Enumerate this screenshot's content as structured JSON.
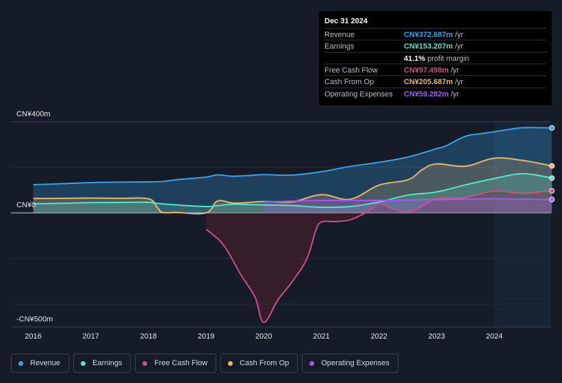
{
  "chart_data": {
    "type": "area",
    "y_top_label": "CN¥400m",
    "y_zero_label": "CN¥0",
    "y_bottom_label": "-CN¥500m",
    "ylim": [
      -500,
      400
    ],
    "xlim": [
      2015.6,
      2025.0
    ],
    "forecast_start": 2024.0,
    "x_ticks": [
      "2016",
      "2017",
      "2018",
      "2019",
      "2020",
      "2021",
      "2022",
      "2023",
      "2024"
    ],
    "series": [
      {
        "key": "revenue",
        "name": "Revenue",
        "color": "#3aa3e6",
        "points": [
          [
            2016,
            124
          ],
          [
            2016.5,
            128
          ],
          [
            2017,
            133
          ],
          [
            2017.5,
            135
          ],
          [
            2018,
            136
          ],
          [
            2018.25,
            138
          ],
          [
            2018.5,
            146
          ],
          [
            2019,
            157
          ],
          [
            2019.2,
            167
          ],
          [
            2019.45,
            161
          ],
          [
            2019.75,
            164
          ],
          [
            2020,
            168
          ],
          [
            2020.5,
            166
          ],
          [
            2021,
            181
          ],
          [
            2021.5,
            204
          ],
          [
            2022,
            222
          ],
          [
            2022.5,
            245
          ],
          [
            2023,
            282
          ],
          [
            2023.15,
            293
          ],
          [
            2023.5,
            336
          ],
          [
            2023.75,
            347
          ],
          [
            2024,
            356
          ],
          [
            2024.25,
            366
          ],
          [
            2024.5,
            374
          ],
          [
            2025,
            373
          ]
        ]
      },
      {
        "key": "earnings",
        "name": "Earnings",
        "color": "#5ce2c9",
        "points": [
          [
            2016,
            40
          ],
          [
            2016.5,
            42
          ],
          [
            2017,
            45
          ],
          [
            2017.5,
            46
          ],
          [
            2018,
            47
          ],
          [
            2018.1,
            43
          ],
          [
            2018.5,
            35
          ],
          [
            2019,
            28
          ],
          [
            2019.2,
            32
          ],
          [
            2019.45,
            38
          ],
          [
            2020,
            35
          ],
          [
            2020.5,
            32
          ],
          [
            2021,
            25
          ],
          [
            2021.5,
            28
          ],
          [
            2022,
            48
          ],
          [
            2022.5,
            78
          ],
          [
            2023,
            92
          ],
          [
            2023.5,
            123
          ],
          [
            2024,
            151
          ],
          [
            2024.5,
            172
          ],
          [
            2025,
            153
          ]
        ]
      },
      {
        "key": "free_cash_flow",
        "name": "Free Cash Flow",
        "color": "#cf4d8a",
        "points": [
          [
            2019,
            -72
          ],
          [
            2019.3,
            -140
          ],
          [
            2019.6,
            -270
          ],
          [
            2019.85,
            -370
          ],
          [
            2020,
            -480
          ],
          [
            2020.25,
            -380
          ],
          [
            2020.5,
            -300
          ],
          [
            2020.75,
            -200
          ],
          [
            2020.9,
            -80
          ],
          [
            2021,
            -40
          ],
          [
            2021.25,
            -38
          ],
          [
            2021.5,
            -30
          ],
          [
            2021.8,
            5
          ],
          [
            2022,
            40
          ],
          [
            2022.25,
            18
          ],
          [
            2022.5,
            5
          ],
          [
            2022.75,
            30
          ],
          [
            2023,
            62
          ],
          [
            2023.5,
            68
          ],
          [
            2024,
            96
          ],
          [
            2024.5,
            86
          ],
          [
            2025,
            97
          ]
        ]
      },
      {
        "key": "cash_from_op",
        "name": "Cash From Op",
        "color": "#e8b86a",
        "points": [
          [
            2016,
            63
          ],
          [
            2016.5,
            64
          ],
          [
            2017,
            65
          ],
          [
            2017.5,
            64
          ],
          [
            2018,
            62
          ],
          [
            2018.15,
            25
          ],
          [
            2018.25,
            2
          ],
          [
            2018.5,
            2
          ],
          [
            2019,
            0
          ],
          [
            2019.2,
            52
          ],
          [
            2019.5,
            43
          ],
          [
            2020,
            50
          ],
          [
            2020.5,
            49
          ],
          [
            2021,
            80
          ],
          [
            2021.5,
            60
          ],
          [
            2022,
            122
          ],
          [
            2022.5,
            145
          ],
          [
            2022.75,
            190
          ],
          [
            2023,
            215
          ],
          [
            2023.5,
            205
          ],
          [
            2024,
            240
          ],
          [
            2024.5,
            230
          ],
          [
            2025,
            206
          ]
        ]
      },
      {
        "key": "operating_expenses",
        "name": "Operating Expenses",
        "color": "#a855f7",
        "points": [
          [
            2020,
            48
          ],
          [
            2021,
            55
          ],
          [
            2022,
            55
          ],
          [
            2023,
            58
          ],
          [
            2023.5,
            60
          ],
          [
            2024,
            62
          ],
          [
            2024.5,
            60
          ],
          [
            2025,
            59
          ]
        ]
      }
    ]
  },
  "tooltip": {
    "date": "Dec 31 2024",
    "rows": [
      {
        "label": "Revenue",
        "value": "CN¥372.687m",
        "unit": " /yr",
        "color": "#3aa3e6"
      },
      {
        "label": "Earnings",
        "value": "CN¥153.207m",
        "unit": " /yr",
        "color": "#5ce2c9"
      },
      {
        "label": "",
        "value": "41.1%",
        "unit": " profit margin",
        "color": "#ffffff"
      },
      {
        "label": "Free Cash Flow",
        "value": "CN¥97.498m",
        "unit": " /yr",
        "color": "#cf4d8a"
      },
      {
        "label": "Cash From Op",
        "value": "CN¥205.687m",
        "unit": " /yr",
        "color": "#e8b86a"
      },
      {
        "label": "Operating Expenses",
        "value": "CN¥59.282m",
        "unit": " /yr",
        "color": "#a855f7"
      }
    ]
  },
  "legend": [
    {
      "label": "Revenue",
      "color": "#3aa3e6"
    },
    {
      "label": "Earnings",
      "color": "#5ce2c9"
    },
    {
      "label": "Free Cash Flow",
      "color": "#cf4d8a"
    },
    {
      "label": "Cash From Op",
      "color": "#e8b86a"
    },
    {
      "label": "Operating Expenses",
      "color": "#a855f7"
    }
  ]
}
